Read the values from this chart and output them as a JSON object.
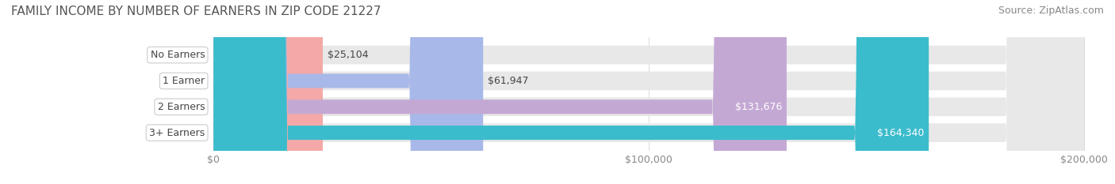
{
  "title": "FAMILY INCOME BY NUMBER OF EARNERS IN ZIP CODE 21227",
  "source": "Source: ZipAtlas.com",
  "categories": [
    "No Earners",
    "1 Earner",
    "2 Earners",
    "3+ Earners"
  ],
  "values": [
    25104,
    61947,
    131676,
    164340
  ],
  "labels": [
    "$25,104",
    "$61,947",
    "$131,676",
    "$164,340"
  ],
  "bar_colors": [
    "#f4a9a8",
    "#a8b8e8",
    "#c4a8d4",
    "#3bbccc"
  ],
  "bar_bg_color": "#f0f0f0",
  "track_color": "#e8e8e8",
  "label_bg_color": "#ffffff",
  "title_color": "#555555",
  "source_color": "#888888",
  "tick_color": "#888888",
  "xmax": 200000,
  "xticks": [
    0,
    100000,
    200000
  ],
  "xtick_labels": [
    "$0",
    "$100,000",
    "$200,000"
  ],
  "background_color": "#ffffff",
  "title_fontsize": 11,
  "source_fontsize": 9,
  "bar_label_fontsize": 9,
  "cat_label_fontsize": 9,
  "tick_fontsize": 9
}
